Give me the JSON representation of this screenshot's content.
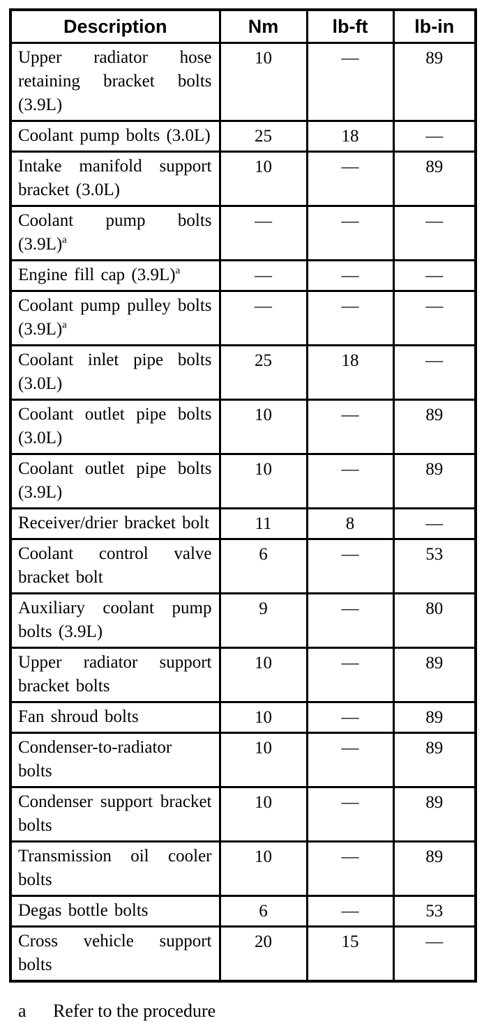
{
  "table": {
    "headers": [
      "Description",
      "Nm",
      "lb-ft",
      "lb-in"
    ],
    "rows": [
      {
        "desc": "Upper radiator hose retaining bracket bolts (3.9L)",
        "sup": "",
        "nm": "10",
        "lbft": "—",
        "lbin": "89"
      },
      {
        "desc": "Coolant pump bolts (3.0L)",
        "sup": "",
        "nm": "25",
        "lbft": "18",
        "lbin": "—"
      },
      {
        "desc": "Intake manifold support bracket (3.0L)",
        "sup": "",
        "nm": "10",
        "lbft": "—",
        "lbin": "89"
      },
      {
        "desc": "Coolant pump bolts (3.9L)",
        "sup": "a",
        "nm": "—",
        "lbft": "—",
        "lbin": "—"
      },
      {
        "desc": "Engine fill cap (3.9L)",
        "sup": "a",
        "nm": "—",
        "lbft": "—",
        "lbin": "—"
      },
      {
        "desc": "Coolant pump pulley bolts (3.9L)",
        "sup": "a",
        "nm": "—",
        "lbft": "—",
        "lbin": "—"
      },
      {
        "desc": "Coolant inlet pipe bolts (3.0L)",
        "sup": "",
        "nm": "25",
        "lbft": "18",
        "lbin": "—"
      },
      {
        "desc": "Coolant outlet pipe bolts (3.0L)",
        "sup": "",
        "nm": "10",
        "lbft": "—",
        "lbin": "89"
      },
      {
        "desc": "Coolant outlet pipe bolts (3.9L)",
        "sup": "",
        "nm": "10",
        "lbft": "—",
        "lbin": "89"
      },
      {
        "desc": "Receiver/drier bracket bolt",
        "sup": "",
        "nm": "11",
        "lbft": "8",
        "lbin": "—"
      },
      {
        "desc": "Coolant control valve bracket bolt",
        "sup": "",
        "nm": "6",
        "lbft": "—",
        "lbin": "53"
      },
      {
        "desc": "Auxiliary coolant pump bolts (3.9L)",
        "sup": "",
        "nm": "9",
        "lbft": "—",
        "lbin": "80"
      },
      {
        "desc": "Upper radiator support bracket bolts",
        "sup": "",
        "nm": "10",
        "lbft": "—",
        "lbin": "89"
      },
      {
        "desc": "Fan shroud bolts",
        "sup": "",
        "nm": "10",
        "lbft": "—",
        "lbin": "89"
      },
      {
        "desc": "Condenser-to-radiator bolts",
        "sup": "",
        "nm": "10",
        "lbft": "—",
        "lbin": "89"
      },
      {
        "desc": "Condenser support bracket bolts",
        "sup": "",
        "nm": "10",
        "lbft": "—",
        "lbin": "89"
      },
      {
        "desc": "Transmission oil cooler bolts",
        "sup": "",
        "nm": "10",
        "lbft": "—",
        "lbin": "89"
      },
      {
        "desc": "Degas bottle bolts",
        "sup": "",
        "nm": "6",
        "lbft": "—",
        "lbin": "53"
      },
      {
        "desc": "Cross vehicle support bolts",
        "sup": "",
        "nm": "20",
        "lbft": "15",
        "lbin": "—"
      }
    ]
  },
  "footnote": {
    "marker": "a",
    "text": "Refer to the procedure"
  }
}
